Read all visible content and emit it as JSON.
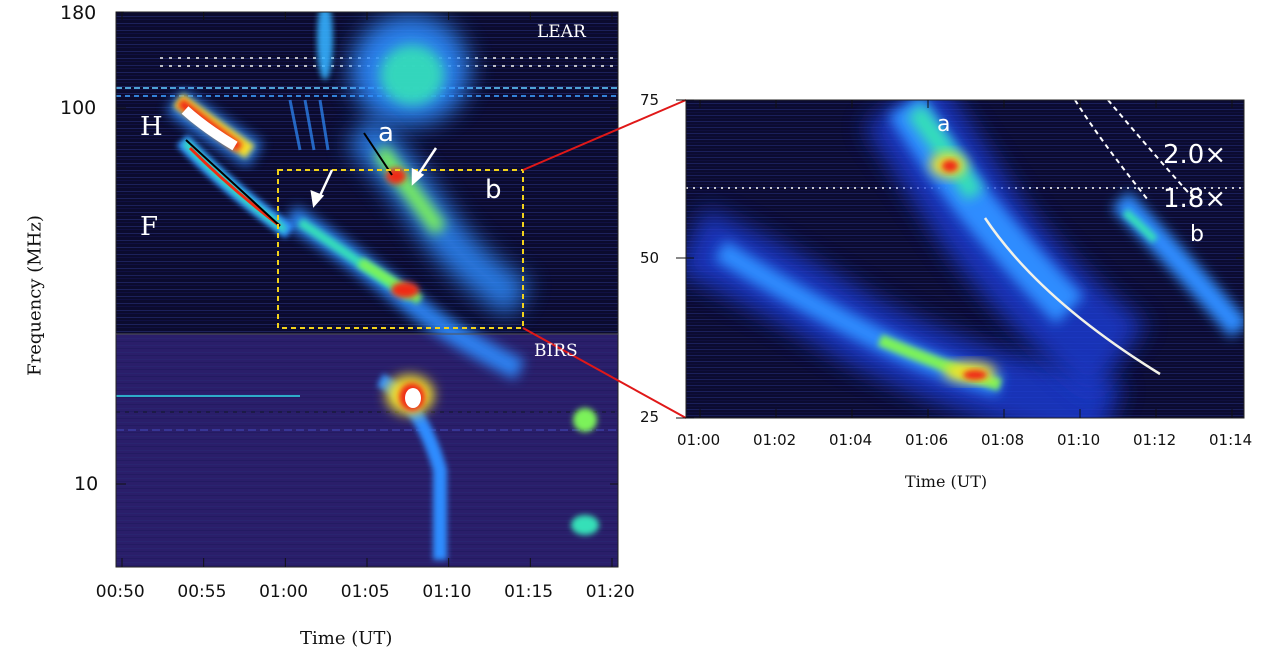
{
  "chart_data": [
    {
      "type": "heatmap",
      "panel": "left",
      "subtitle_labels": [
        "LEAR",
        "BIRS"
      ],
      "xlabel": "Time (UT)",
      "ylabel": "Frequency (MHz)",
      "xticks": [
        "00:50",
        "00:55",
        "01:00",
        "01:05",
        "01:10",
        "01:15",
        "01:20"
      ],
      "yticks": [
        "180",
        "100",
        "10"
      ],
      "y_scale": "log",
      "ylim": [
        6,
        180
      ],
      "annotations": [
        "H",
        "F",
        "a",
        "b"
      ]
    },
    {
      "type": "heatmap",
      "panel": "right",
      "xlabel": "Time (UT)",
      "xticks": [
        "01:00",
        "01:02",
        "01:04",
        "01:06",
        "01:08",
        "01:10",
        "01:12",
        "01:14"
      ],
      "yticks": [
        "75",
        "50",
        "25"
      ],
      "ylim": [
        25,
        75
      ],
      "annotations": [
        "a",
        "b",
        "2.0×",
        "1.8×"
      ]
    }
  ],
  "colors": {
    "background": "#0a0a2a",
    "lower_band": "#2c1f6e",
    "zoom_box": "#f2d21b",
    "connector": "#e01818",
    "intensity_scale": [
      "#0a0a2a",
      "#1e2a9e",
      "#2f8cff",
      "#34e0d0",
      "#7cf25a",
      "#f4e02a",
      "#ef2a12",
      "#ffffff"
    ]
  }
}
